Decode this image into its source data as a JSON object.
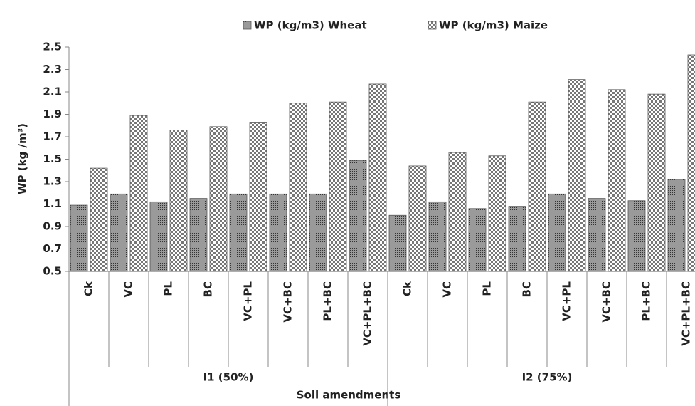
{
  "chart_data": {
    "type": "bar",
    "xlabel": "Soil amendments",
    "ylabel": "WP (kg /m³)",
    "groups": [
      "I1 (50%)",
      "I2 (75%)"
    ],
    "categories": [
      "Ck",
      "VC",
      "PL",
      "BC",
      "VC+PL",
      "VC+BC",
      "PL+BC",
      "VC+PL+BC",
      "Ck",
      "VC",
      "PL",
      "BC",
      "VC+PL",
      "VC+BC",
      "PL+BC",
      "VC+PL+BC"
    ],
    "series": [
      {
        "name": "WP (kg/m3) Wheat",
        "color": "#7f7f7f",
        "values": [
          1.09,
          1.19,
          1.12,
          1.15,
          1.19,
          1.19,
          1.19,
          1.49,
          1.0,
          1.12,
          1.06,
          1.08,
          1.19,
          1.15,
          1.13,
          1.32
        ]
      },
      {
        "name": "WP (kg/m3) Maize",
        "color": "#ffffff",
        "values": [
          1.42,
          1.89,
          1.76,
          1.79,
          1.83,
          2.0,
          2.01,
          2.17,
          1.44,
          1.56,
          1.53,
          2.01,
          2.21,
          2.12,
          2.08,
          2.43
        ]
      }
    ],
    "ylim": [
      0.5,
      2.5
    ],
    "yticks": [
      0.5,
      0.7,
      0.9,
      1.1,
      1.3,
      1.5,
      1.7,
      1.9,
      2.1,
      2.3,
      2.5
    ],
    "legend": "top"
  }
}
